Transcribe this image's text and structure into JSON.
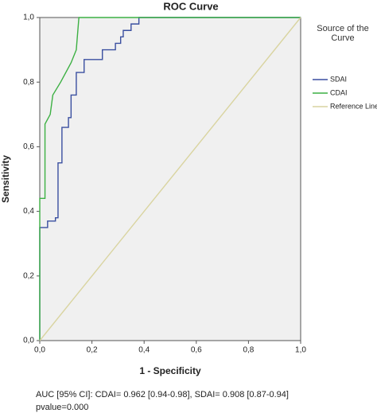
{
  "chart_data": {
    "type": "line",
    "title": "ROC Curve",
    "xlabel": "1 - Specificity",
    "ylabel": "Sensitivity",
    "legend_title": "Source of the Curve",
    "legend": "right",
    "xlim": [
      0,
      1
    ],
    "ylim": [
      0,
      1
    ],
    "xticks": [
      {
        "value": 0,
        "label": "0,0"
      },
      {
        "value": 0.2,
        "label": "0,2"
      },
      {
        "value": 0.4,
        "label": "0,4"
      },
      {
        "value": 0.6,
        "label": "0,6"
      },
      {
        "value": 0.8,
        "label": "0,8"
      },
      {
        "value": 1,
        "label": "1,0"
      }
    ],
    "yticks": [
      {
        "value": 0,
        "label": "0,0"
      },
      {
        "value": 0.2,
        "label": "0,2"
      },
      {
        "value": 0.4,
        "label": "0,4"
      },
      {
        "value": 0.6,
        "label": "0,6"
      },
      {
        "value": 0.8,
        "label": "0,8"
      },
      {
        "value": 1,
        "label": "1,0"
      }
    ],
    "series": [
      {
        "name": "SDAI",
        "color": "#3a4fa0",
        "x": [
          0,
          0,
          0.03,
          0.03,
          0.06,
          0.06,
          0.07,
          0.07,
          0.085,
          0.085,
          0.11,
          0.11,
          0.12,
          0.12,
          0.14,
          0.14,
          0.17,
          0.17,
          0.24,
          0.24,
          0.29,
          0.29,
          0.31,
          0.31,
          0.32,
          0.32,
          0.35,
          0.35,
          0.38,
          0.38,
          1
        ],
        "values": [
          0,
          0.35,
          0.35,
          0.37,
          0.37,
          0.38,
          0.38,
          0.55,
          0.55,
          0.66,
          0.66,
          0.69,
          0.69,
          0.76,
          0.76,
          0.83,
          0.83,
          0.87,
          0.87,
          0.9,
          0.9,
          0.92,
          0.92,
          0.94,
          0.94,
          0.96,
          0.96,
          0.98,
          0.98,
          1,
          1
        ]
      },
      {
        "name": "CDAI",
        "color": "#3cb043",
        "x": [
          0,
          0,
          0.02,
          0.02,
          0.04,
          0.05,
          0.08,
          0.12,
          0.14,
          0.15,
          1
        ],
        "values": [
          0,
          0.44,
          0.44,
          0.67,
          0.7,
          0.76,
          0.8,
          0.86,
          0.9,
          1,
          1
        ]
      },
      {
        "name": "Reference Line",
        "color": "#d9d4a0",
        "x": [
          0,
          1
        ],
        "values": [
          0,
          1
        ]
      }
    ],
    "notes": [
      "AUC [95% CI]: CDAI= 0.962 [0.94-0.98], SDAI= 0.908 [0.87-0.94]",
      "pvalue=0.000"
    ]
  }
}
